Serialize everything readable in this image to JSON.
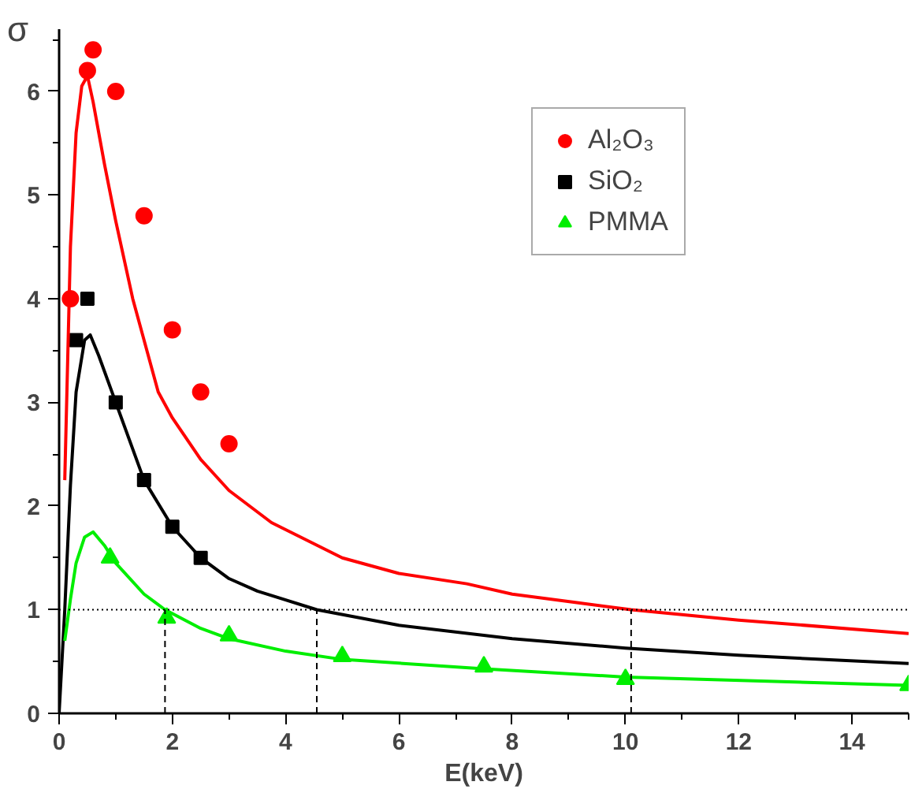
{
  "chart_data": {
    "type": "scatter",
    "xlabel": "E(keV)",
    "ylabel": "σ",
    "xlim": [
      0,
      15
    ],
    "ylim": [
      0,
      6.6
    ],
    "xticks": [
      0,
      2,
      4,
      6,
      8,
      10,
      12,
      14
    ],
    "yticks": [
      0,
      1,
      2,
      3,
      4,
      5,
      6
    ],
    "grid": false,
    "legend": "top right",
    "ref_lines": [
      {
        "axis": "y",
        "value": 1,
        "label": null,
        "color": "#000000",
        "line_style": "dotted"
      }
    ],
    "series": [
      {
        "name": "Al₂O₃",
        "marker": "circle",
        "color": "#ff0000",
        "x": [
          0.2,
          0.5,
          0.6,
          1.0,
          1.5,
          2.0,
          2.5,
          3.0
        ],
        "values": [
          4.0,
          6.2,
          6.4,
          6.0,
          4.8,
          3.7,
          3.1,
          2.6
        ]
      },
      {
        "name": "SiO₂",
        "marker": "square",
        "color": "#000000",
        "x": [
          0.3,
          0.5,
          1.0,
          1.5,
          2.0,
          2.5
        ],
        "values": [
          3.6,
          4.0,
          3.0,
          2.25,
          1.8,
          1.5
        ]
      },
      {
        "name": "PMMA",
        "marker": "triangle",
        "color": "#00ee00",
        "x": [
          0.9,
          1.9,
          3.0,
          5.0,
          7.5,
          10,
          15
        ],
        "values": [
          1.5,
          0.92,
          0.75,
          0.55,
          0.45,
          0.33,
          0.27
        ]
      },
      {
        "type": "line",
        "color": "#ff0000",
        "line_style": "solid",
        "x": [
          0.1,
          0.2,
          0.3,
          0.4,
          0.5,
          0.6,
          0.8,
          1.0,
          1.3,
          1.75,
          2.0,
          2.5,
          3,
          3.75,
          5,
          6,
          7.2,
          8,
          10.1,
          12,
          15
        ],
        "values": [
          2.25,
          4.5,
          5.6,
          6.05,
          6.15,
          5.9,
          5.3,
          4.75,
          4.0,
          3.1,
          2.85,
          2.45,
          2.15,
          1.84,
          1.5,
          1.35,
          1.25,
          1.15,
          1.0,
          0.9,
          0.77
        ]
      },
      {
        "type": "line",
        "color": "#000000",
        "line_style": "solid",
        "x": [
          0,
          0.1,
          0.2,
          0.3,
          0.45,
          0.55,
          0.7,
          1.0,
          1.5,
          2.0,
          2.5,
          3,
          3.5,
          4.55,
          6,
          8,
          10,
          12,
          15
        ],
        "values": [
          0,
          1.0,
          2.2,
          3.1,
          3.6,
          3.65,
          3.45,
          3.0,
          2.25,
          1.8,
          1.5,
          1.3,
          1.18,
          1.0,
          0.85,
          0.72,
          0.63,
          0.56,
          0.48
        ]
      },
      {
        "type": "line",
        "color": "#00ee00",
        "line_style": "solid",
        "x": [
          0.1,
          0.2,
          0.3,
          0.45,
          0.6,
          0.8,
          1.0,
          1.5,
          1.87,
          2.5,
          3,
          4,
          5,
          7.5,
          10,
          15
        ],
        "values": [
          0.7,
          1.1,
          1.45,
          1.7,
          1.75,
          1.62,
          1.45,
          1.15,
          1.0,
          0.82,
          0.72,
          0.6,
          0.52,
          0.43,
          0.35,
          0.27
        ]
      },
      {
        "type": "line",
        "color": "#000000",
        "line_style": "dashed",
        "x": [
          1.87,
          1.87
        ],
        "values": [
          0,
          1
        ]
      },
      {
        "type": "line",
        "color": "#000000",
        "line_style": "dashed",
        "x": [
          4.55,
          4.55
        ],
        "values": [
          0,
          1
        ]
      },
      {
        "type": "line",
        "color": "#000000",
        "line_style": "dashed",
        "x": [
          10.1,
          10.1
        ],
        "values": [
          0,
          1
        ]
      }
    ]
  }
}
